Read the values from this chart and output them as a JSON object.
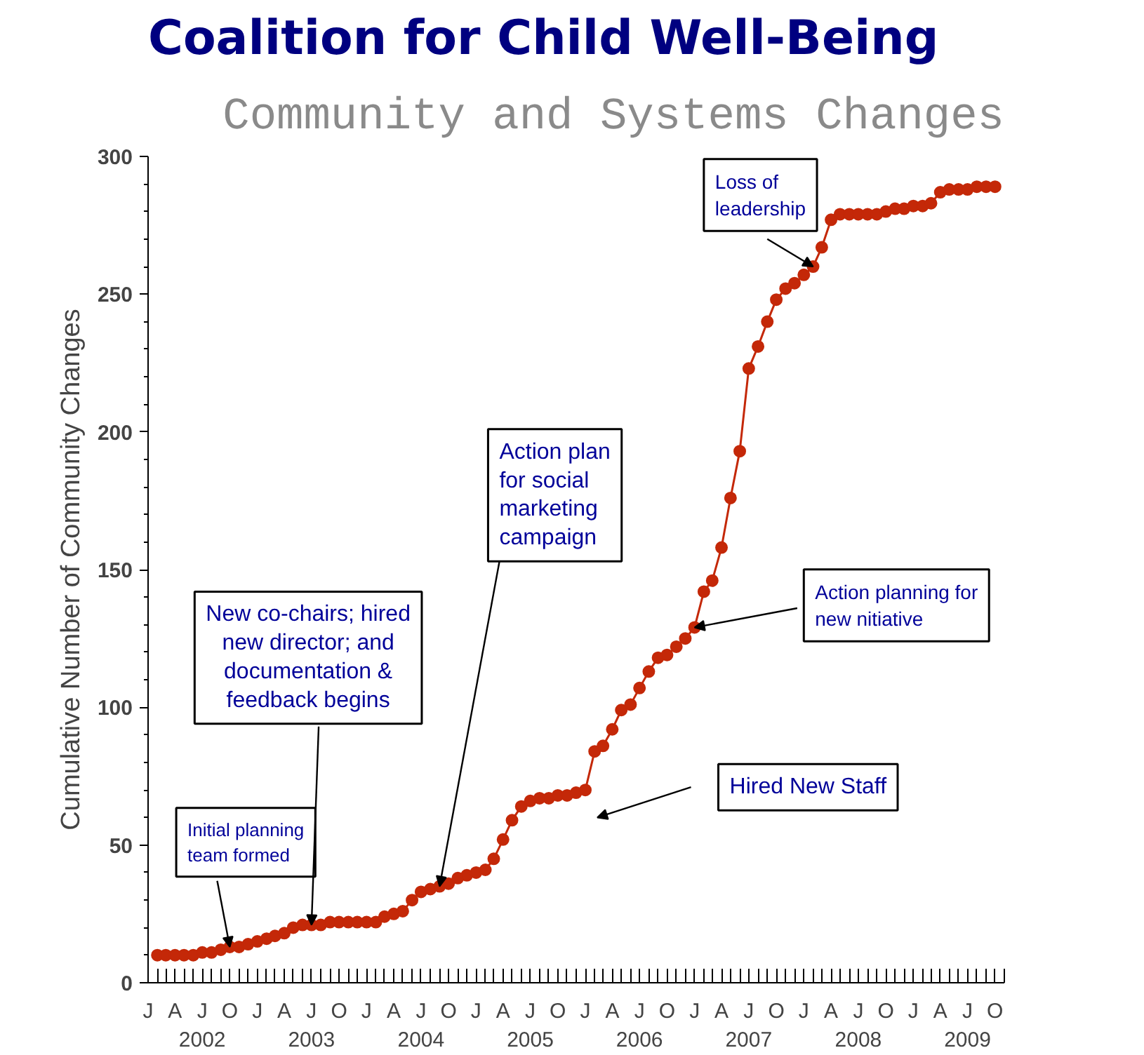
{
  "chart_data": {
    "type": "line",
    "title": "Coalition for Child Well-Being",
    "subtitle": "Community and Systems Changes",
    "ylabel": "Cumulative Number of Community Changes",
    "x": [
      "2002-02",
      "2002-03",
      "2002-04",
      "2002-05",
      "2002-06",
      "2002-07",
      "2002-08",
      "2002-09",
      "2002-10",
      "2002-11",
      "2002-12",
      "2003-01",
      "2003-02",
      "2003-03",
      "2003-04",
      "2003-05",
      "2003-06",
      "2003-07",
      "2003-08",
      "2003-09",
      "2003-10",
      "2003-11",
      "2003-12",
      "2004-01",
      "2004-02",
      "2004-03",
      "2004-04",
      "2004-05",
      "2004-06",
      "2004-07",
      "2004-08",
      "2004-09",
      "2004-10",
      "2004-11",
      "2004-12",
      "2005-01",
      "2005-02",
      "2005-03",
      "2005-04",
      "2005-05",
      "2005-06",
      "2005-07",
      "2005-08",
      "2005-09",
      "2005-10",
      "2005-11",
      "2005-12",
      "2006-01",
      "2006-02",
      "2006-03",
      "2006-04",
      "2006-05",
      "2006-06",
      "2006-07",
      "2006-08",
      "2006-09",
      "2006-10",
      "2006-11",
      "2006-12",
      "2007-01",
      "2007-02",
      "2007-03",
      "2007-04",
      "2007-05",
      "2007-06",
      "2007-07",
      "2007-08",
      "2007-09",
      "2007-10",
      "2007-11",
      "2007-12",
      "2008-01",
      "2008-02",
      "2008-03",
      "2008-04",
      "2008-05",
      "2008-06",
      "2008-07",
      "2008-08",
      "2008-09",
      "2008-10",
      "2008-11",
      "2008-12",
      "2009-01",
      "2009-02",
      "2009-03",
      "2009-04",
      "2009-05",
      "2009-06",
      "2009-07",
      "2009-08",
      "2009-09",
      "2009-10"
    ],
    "series": [
      {
        "color": "#c42808",
        "values": [
          10,
          10,
          10,
          10,
          10,
          11,
          11,
          12,
          13,
          13,
          14,
          15,
          16,
          17,
          18,
          20,
          21,
          21,
          21,
          22,
          22,
          22,
          22,
          22,
          22,
          24,
          25,
          26,
          30,
          33,
          34,
          35,
          36,
          38,
          39,
          40,
          41,
          45,
          52,
          59,
          64,
          66,
          67,
          67,
          68,
          68,
          69,
          70,
          84,
          86,
          92,
          99,
          101,
          107,
          113,
          118,
          119,
          122,
          125,
          129,
          142,
          146,
          158,
          176,
          193,
          223,
          231,
          240,
          248,
          252,
          254,
          257,
          260,
          267,
          277,
          279,
          279,
          279,
          279,
          279,
          280,
          281,
          281,
          282,
          282,
          283,
          287,
          288,
          288,
          288,
          289,
          289,
          289
        ]
      }
    ],
    "marker": "circle",
    "line_style": "solid",
    "xlim": [
      "2002-01",
      "2009-11"
    ],
    "ylim": [
      0,
      300
    ],
    "yticks": [
      0,
      50,
      100,
      150,
      200,
      250,
      300
    ],
    "xticks": [
      {
        "value": "2002-01",
        "label": "J"
      },
      {
        "value": "2002-04",
        "label": "A"
      },
      {
        "value": "2002-07",
        "label": "J\n2002"
      },
      {
        "value": "2002-10",
        "label": "O"
      },
      {
        "value": "2003-01",
        "label": "J"
      },
      {
        "value": "2003-04",
        "label": "A"
      },
      {
        "value": "2003-07",
        "label": "J\n2003"
      },
      {
        "value": "2003-10",
        "label": "O"
      },
      {
        "value": "2004-01",
        "label": "J"
      },
      {
        "value": "2004-04",
        "label": "A"
      },
      {
        "value": "2004-07",
        "label": "J\n2004"
      },
      {
        "value": "2004-10",
        "label": "O"
      },
      {
        "value": "2005-01",
        "label": "J"
      },
      {
        "value": "2005-04",
        "label": "A"
      },
      {
        "value": "2005-07",
        "label": "J\n2005"
      },
      {
        "value": "2005-10",
        "label": "O"
      },
      {
        "value": "2006-01",
        "label": "J"
      },
      {
        "value": "2006-04",
        "label": "A"
      },
      {
        "value": "2006-07",
        "label": "J\n2006"
      },
      {
        "value": "2006-10",
        "label": "O"
      },
      {
        "value": "2007-01",
        "label": "J"
      },
      {
        "value": "2007-04",
        "label": "A"
      },
      {
        "value": "2007-07",
        "label": "J\n2007"
      },
      {
        "value": "2007-10",
        "label": "O"
      },
      {
        "value": "2008-01",
        "label": "J"
      },
      {
        "value": "2008-04",
        "label": "A"
      },
      {
        "value": "2008-07",
        "label": "J\n2008"
      },
      {
        "value": "2008-10",
        "label": "O"
      },
      {
        "value": "2009-01",
        "label": "J"
      },
      {
        "value": "2009-04",
        "label": "A"
      },
      {
        "value": "2009-07",
        "label": "J\n2009"
      },
      {
        "value": "2009-10",
        "label": "O"
      }
    ],
    "annotations": [
      {
        "text": "Initial planning\nteam formed",
        "x": "2002-10",
        "y": 13
      },
      {
        "text": "New co-chairs; hired\nnew director; and\ndocumentation &\nfeedback begins",
        "x": "2003-07",
        "y": 21
      },
      {
        "text": "Action plan\nfor social\nmarketing\ncampaign",
        "x": "2004-09",
        "y": 35
      },
      "Hired New Staff",
      {
        "text": "Action planning for\nnew nitiative",
        "x": "2007-01",
        "y": 129
      },
      {
        "text": "Loss of\nleadership",
        "x": "2008-02",
        "y": 260
      }
    ]
  }
}
